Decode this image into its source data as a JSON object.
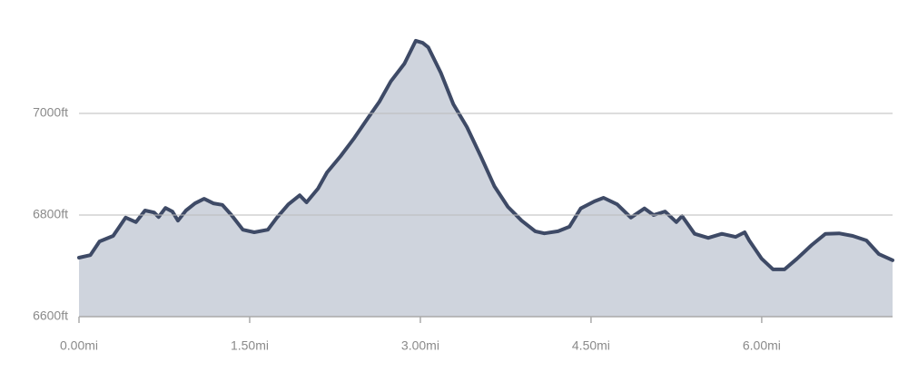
{
  "chart_data": {
    "type": "area",
    "x": [
      0,
      0.1,
      0.18,
      0.3,
      0.41,
      0.5,
      0.58,
      0.66,
      0.7,
      0.76,
      0.82,
      0.87,
      0.94,
      1.02,
      1.1,
      1.18,
      1.26,
      1.34,
      1.44,
      1.54,
      1.66,
      1.74,
      1.84,
      1.94,
      2.0,
      2.1,
      2.18,
      2.3,
      2.42,
      2.54,
      2.64,
      2.74,
      2.86,
      2.96,
      3.02,
      3.07,
      3.18,
      3.29,
      3.41,
      3.53,
      3.65,
      3.77,
      3.89,
      4.01,
      4.09,
      4.21,
      4.31,
      4.41,
      4.53,
      4.61,
      4.73,
      4.85,
      4.97,
      5.05,
      5.15,
      5.25,
      5.3,
      5.41,
      5.53,
      5.65,
      5.77,
      5.85,
      5.89,
      6.0,
      6.1,
      6.2,
      6.31,
      6.44,
      6.56,
      6.68,
      6.8,
      6.92,
      7.03,
      7.15
    ],
    "values": [
      6716,
      6721,
      6748,
      6759,
      6795,
      6786,
      6809,
      6805,
      6796,
      6814,
      6807,
      6789,
      6809,
      6823,
      6832,
      6823,
      6820,
      6800,
      6771,
      6766,
      6771,
      6795,
      6821,
      6839,
      6825,
      6852,
      6884,
      6916,
      6952,
      6991,
      7023,
      7063,
      7098,
      7143,
      7139,
      7130,
      7080,
      7018,
      6973,
      6916,
      6857,
      6816,
      6789,
      6768,
      6764,
      6768,
      6777,
      6813,
      6827,
      6834,
      6821,
      6795,
      6813,
      6800,
      6807,
      6786,
      6798,
      6763,
      6755,
      6763,
      6757,
      6766,
      6750,
      6714,
      6693,
      6693,
      6714,
      6741,
      6763,
      6764,
      6759,
      6750,
      6723,
      6711
    ],
    "color": "#3e4a66",
    "fill": "#cfd4dd",
    "xlim": [
      0,
      7.15
    ],
    "ylim": [
      6600,
      7200
    ],
    "xticks": [
      {
        "value": 0,
        "label": "0.00mi"
      },
      {
        "value": 1.5,
        "label": "1.50mi"
      },
      {
        "value": 3,
        "label": "3.00mi"
      },
      {
        "value": 4.5,
        "label": "4.50mi"
      },
      {
        "value": 6,
        "label": "6.00mi"
      }
    ],
    "yticks": [
      {
        "value": 6600,
        "label": "6600ft"
      },
      {
        "value": 6800,
        "label": "6800ft"
      },
      {
        "value": 7000,
        "label": "7000ft"
      }
    ],
    "grid": true
  }
}
